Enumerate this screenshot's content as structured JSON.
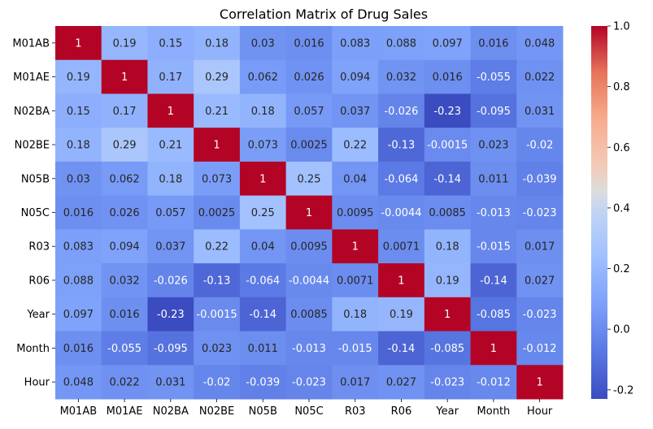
{
  "chart_data": {
    "type": "heatmap",
    "title": "Correlation Matrix of Drug Sales",
    "rows": [
      "M01AB",
      "M01AE",
      "N02BA",
      "N02BE",
      "N05B",
      "N05C",
      "R03",
      "R06",
      "Year",
      "Month",
      "Hour"
    ],
    "columns": [
      "M01AB",
      "M01AE",
      "N02BA",
      "N02BE",
      "N05B",
      "N05C",
      "R03",
      "R06",
      "Year",
      "Month",
      "Hour"
    ],
    "cell_labels": [
      [
        "1",
        "0.19",
        "0.15",
        "0.18",
        "0.03",
        "0.016",
        "0.083",
        "0.088",
        "0.097",
        "0.016",
        "0.048"
      ],
      [
        "0.19",
        "1",
        "0.17",
        "0.29",
        "0.062",
        "0.026",
        "0.094",
        "0.032",
        "0.016",
        "-0.055",
        "0.022"
      ],
      [
        "0.15",
        "0.17",
        "1",
        "0.21",
        "0.18",
        "0.057",
        "0.037",
        "-0.026",
        "-0.23",
        "-0.095",
        "0.031"
      ],
      [
        "0.18",
        "0.29",
        "0.21",
        "1",
        "0.073",
        "0.0025",
        "0.22",
        "-0.13",
        "-0.0015",
        "0.023",
        "-0.02"
      ],
      [
        "0.03",
        "0.062",
        "0.18",
        "0.073",
        "1",
        "0.25",
        "0.04",
        "-0.064",
        "-0.14",
        "0.011",
        "-0.039"
      ],
      [
        "0.016",
        "0.026",
        "0.057",
        "0.0025",
        "0.25",
        "1",
        "0.0095",
        "-0.0044",
        "0.0085",
        "-0.013",
        "-0.023"
      ],
      [
        "0.083",
        "0.094",
        "0.037",
        "0.22",
        "0.04",
        "0.0095",
        "1",
        "0.0071",
        "0.18",
        "-0.015",
        "0.017"
      ],
      [
        "0.088",
        "0.032",
        "-0.026",
        "-0.13",
        "-0.064",
        "-0.0044",
        "0.0071",
        "1",
        "0.19",
        "-0.14",
        "0.027"
      ],
      [
        "0.097",
        "0.016",
        "-0.23",
        "-0.0015",
        "-0.14",
        "0.0085",
        "0.18",
        "0.19",
        "1",
        "-0.085",
        "-0.023"
      ],
      [
        "0.016",
        "-0.055",
        "-0.095",
        "0.023",
        "0.011",
        "-0.013",
        "-0.015",
        "-0.14",
        "-0.085",
        "1",
        "-0.012"
      ],
      [
        "0.048",
        "0.022",
        "0.031",
        "-0.02",
        "-0.039",
        "-0.023",
        "0.017",
        "0.027",
        "-0.023",
        "-0.012",
        "1"
      ]
    ],
    "colormap": "coolwarm",
    "vmin": -0.23,
    "vmax": 1,
    "colorbar_ticks": [
      "1.0",
      "0.8",
      "0.6",
      "0.4",
      "0.2",
      "0.0",
      "-0.2"
    ],
    "colorbar_tick_values": [
      1.0,
      0.8,
      0.6,
      0.4,
      0.2,
      0.0,
      -0.2
    ]
  }
}
